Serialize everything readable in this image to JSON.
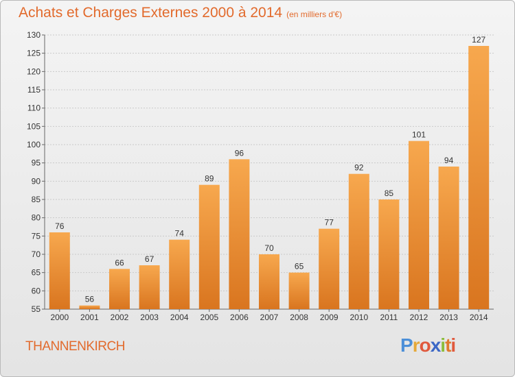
{
  "title": "Achats et Charges Externes 2000 à 2014",
  "subtitle": "(en milliers d'€)",
  "place": "THANNENKIRCH",
  "logo": {
    "text": "Proxiti",
    "letter_colors": [
      "#4c8fd8",
      "#e5a93a",
      "#e0593d",
      "#3c67c6",
      "#8bbd3b",
      "#e07a2e",
      "#e0593d"
    ]
  },
  "colors": {
    "title": "#e26a2c",
    "bar_top": "#f7a84e",
    "bar_bottom": "#d9751f",
    "grid": "#c9c9c9"
  },
  "chart_data": {
    "type": "bar",
    "categories": [
      "2000",
      "2001",
      "2002",
      "2003",
      "2004",
      "2005",
      "2006",
      "2007",
      "2008",
      "2009",
      "2010",
      "2011",
      "2012",
      "2013",
      "2014"
    ],
    "values": [
      76,
      56,
      66,
      67,
      74,
      89,
      96,
      70,
      65,
      77,
      92,
      85,
      101,
      94,
      127
    ],
    "ylim": [
      55,
      130
    ],
    "yticks": [
      55,
      60,
      65,
      70,
      75,
      80,
      85,
      90,
      95,
      100,
      105,
      110,
      115,
      120,
      125,
      130
    ],
    "grid": true,
    "data_labels": true
  }
}
